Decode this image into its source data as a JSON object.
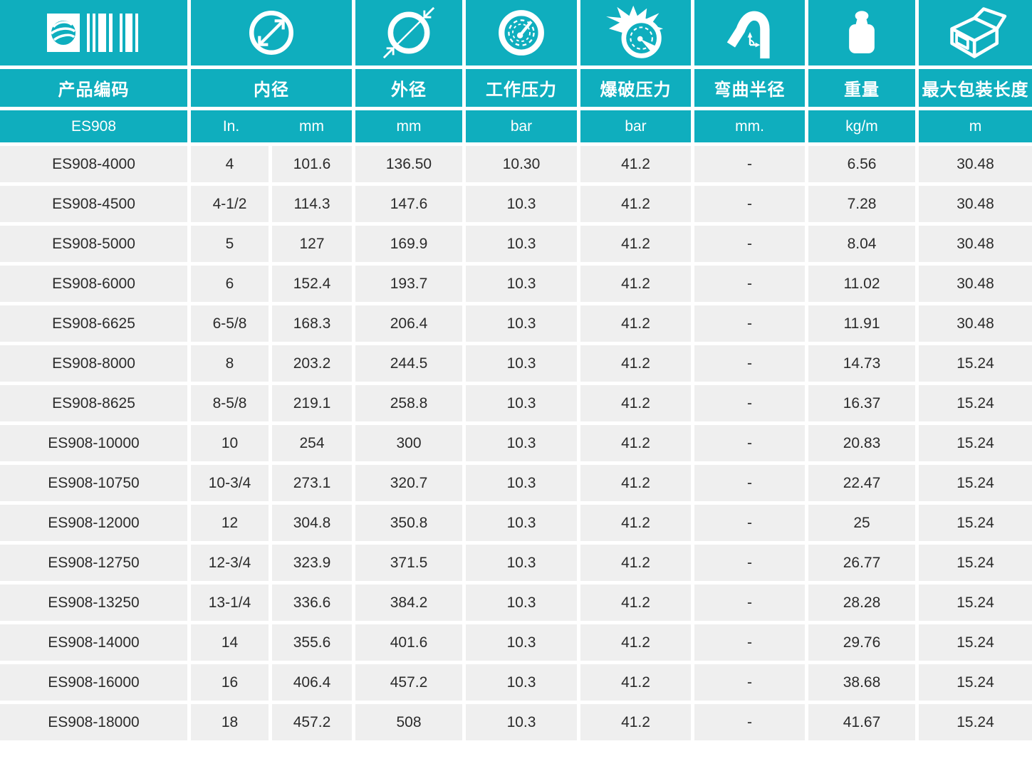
{
  "theme": {
    "accent": "#0FAEBE",
    "row_bg": "#EFEFEF",
    "header_text": "#FFFFFF",
    "cell_text": "#2B2B2B"
  },
  "table": {
    "columns": [
      {
        "id": "product_code",
        "icon": "barcode-logo-icon",
        "label": "产品编码",
        "unit": "ES908"
      },
      {
        "id": "inner_diameter",
        "icon": "inner-diameter-icon",
        "label": "内径",
        "units": [
          "In.",
          "mm"
        ]
      },
      {
        "id": "outer_diameter",
        "icon": "outer-diameter-icon",
        "label": "外径",
        "unit": "mm"
      },
      {
        "id": "working_pressure",
        "icon": "pressure-gauge-icon",
        "label": "工作压力",
        "unit": "bar"
      },
      {
        "id": "burst_pressure",
        "icon": "burst-gauge-icon",
        "label": "爆破压力",
        "unit": "bar"
      },
      {
        "id": "bend_radius",
        "icon": "bend-radius-icon",
        "label": "弯曲半径",
        "unit": "mm."
      },
      {
        "id": "weight",
        "icon": "weight-icon",
        "label": "重量",
        "unit": "kg/m"
      },
      {
        "id": "max_package_length",
        "icon": "package-box-icon",
        "label": "最大包装长度",
        "unit": "m"
      }
    ],
    "rows": [
      [
        "ES908-4000",
        "4",
        "101.6",
        "136.50",
        "10.30",
        "41.2",
        "-",
        "6.56",
        "30.48"
      ],
      [
        "ES908-4500",
        "4-1/2",
        "114.3",
        "147.6",
        "10.3",
        "41.2",
        "-",
        "7.28",
        "30.48"
      ],
      [
        "ES908-5000",
        "5",
        "127",
        "169.9",
        "10.3",
        "41.2",
        "-",
        "8.04",
        "30.48"
      ],
      [
        "ES908-6000",
        "6",
        "152.4",
        "193.7",
        "10.3",
        "41.2",
        "-",
        "11.02",
        "30.48"
      ],
      [
        "ES908-6625",
        "6-5/8",
        "168.3",
        "206.4",
        "10.3",
        "41.2",
        "-",
        "11.91",
        "30.48"
      ],
      [
        "ES908-8000",
        "8",
        "203.2",
        "244.5",
        "10.3",
        "41.2",
        "-",
        "14.73",
        "15.24"
      ],
      [
        "ES908-8625",
        "8-5/8",
        "219.1",
        "258.8",
        "10.3",
        "41.2",
        "-",
        "16.37",
        "15.24"
      ],
      [
        "ES908-10000",
        "10",
        "254",
        "300",
        "10.3",
        "41.2",
        "-",
        "20.83",
        "15.24"
      ],
      [
        "ES908-10750",
        "10-3/4",
        "273.1",
        "320.7",
        "10.3",
        "41.2",
        "-",
        "22.47",
        "15.24"
      ],
      [
        "ES908-12000",
        "12",
        "304.8",
        "350.8",
        "10.3",
        "41.2",
        "-",
        "25",
        "15.24"
      ],
      [
        "ES908-12750",
        "12-3/4",
        "323.9",
        "371.5",
        "10.3",
        "41.2",
        "-",
        "26.77",
        "15.24"
      ],
      [
        "ES908-13250",
        "13-1/4",
        "336.6",
        "384.2",
        "10.3",
        "41.2",
        "-",
        "28.28",
        "15.24"
      ],
      [
        "ES908-14000",
        "14",
        "355.6",
        "401.6",
        "10.3",
        "41.2",
        "-",
        "29.76",
        "15.24"
      ],
      [
        "ES908-16000",
        "16",
        "406.4",
        "457.2",
        "10.3",
        "41.2",
        "-",
        "38.68",
        "15.24"
      ],
      [
        "ES908-18000",
        "18",
        "457.2",
        "508",
        "10.3",
        "41.2",
        "-",
        "41.67",
        "15.24"
      ]
    ]
  }
}
